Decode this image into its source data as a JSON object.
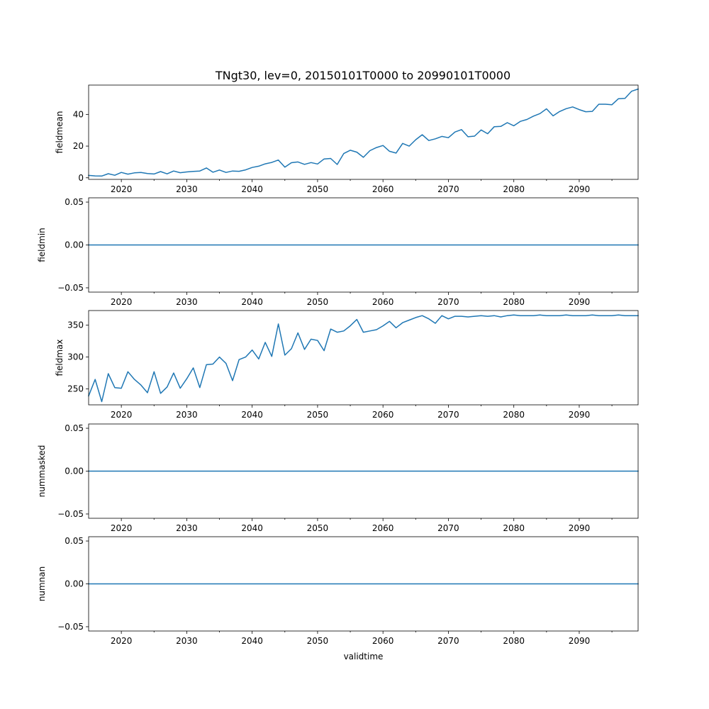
{
  "figure_title": "TNgt30, lev=0, 20150101T0000 to 20990101T0000",
  "xlabel": "validtime",
  "colors": {
    "series": "#1f77b4",
    "axes": "#000000",
    "background": "#ffffff"
  },
  "chart_data": [
    {
      "type": "line",
      "title": "TNgt30, lev=0, 20150101T0000 to 20990101T0000",
      "xlabel": "",
      "ylabel": "fieldmean",
      "x_start": 2015,
      "xlim": [
        2015,
        2099
      ],
      "ylim": [
        -1,
        58.5
      ],
      "xticks": [
        2020,
        2030,
        2040,
        2050,
        2060,
        2070,
        2080,
        2090
      ],
      "xtick_labels": [
        "2020",
        "2030",
        "2040",
        "2050",
        "2060",
        "2070",
        "2080",
        "2090"
      ],
      "yticks": [
        0,
        20,
        40
      ],
      "ytick_labels": [
        "0",
        "20",
        "40"
      ],
      "values": [
        1.5,
        1.2,
        1.1,
        2.6,
        1.6,
        3.4,
        2.3,
        3.1,
        3.4,
        2.7,
        2.4,
        3.9,
        2.5,
        4.3,
        3.2,
        3.7,
        4.0,
        4.3,
        6.2,
        3.5,
        4.9,
        3.4,
        4.3,
        4.1,
        5.0,
        6.5,
        7.3,
        8.8,
        9.7,
        11.2,
        6.7,
        9.5,
        10.0,
        8.5,
        9.6,
        8.7,
        11.9,
        12.2,
        8.4,
        15.3,
        17.4,
        16.2,
        12.9,
        17.1,
        19.1,
        20.4,
        16.7,
        15.6,
        21.7,
        20.0,
        24.0,
        27.2,
        23.5,
        24.6,
        26.1,
        25.3,
        28.9,
        30.4,
        25.9,
        26.3,
        30.2,
        27.8,
        32.2,
        32.4,
        34.8,
        32.8,
        35.6,
        36.8,
        38.9,
        40.5,
        43.5,
        39.1,
        41.8,
        43.6,
        44.7,
        43.0,
        41.7,
        41.9,
        46.4,
        46.4,
        46.1,
        49.9,
        50.1,
        54.6,
        56.0
      ]
    },
    {
      "type": "line",
      "title": "",
      "xlabel": "",
      "ylabel": "fieldmin",
      "x_start": 2015,
      "xlim": [
        2015,
        2099
      ],
      "ylim": [
        -0.055,
        0.055
      ],
      "xticks": [
        2020,
        2030,
        2040,
        2050,
        2060,
        2070,
        2080,
        2090
      ],
      "xtick_labels": [
        "2020",
        "2030",
        "2040",
        "2050",
        "2060",
        "2070",
        "2080",
        "2090"
      ],
      "yticks": [
        -0.05,
        0,
        0.05
      ],
      "ytick_labels": [
        "−0.05",
        "0.00",
        "0.05"
      ],
      "constant_value": 0
    },
    {
      "type": "line",
      "title": "",
      "xlabel": "",
      "ylabel": "fieldmax",
      "x_start": 2015,
      "xlim": [
        2015,
        2099
      ],
      "ylim": [
        225,
        373
      ],
      "xticks": [
        2020,
        2030,
        2040,
        2050,
        2060,
        2070,
        2080,
        2090
      ],
      "xtick_labels": [
        "2020",
        "2030",
        "2040",
        "2050",
        "2060",
        "2070",
        "2080",
        "2090"
      ],
      "yticks": [
        250,
        300,
        350
      ],
      "ytick_labels": [
        "250",
        "300",
        "350"
      ],
      "values": [
        239,
        265,
        230,
        274,
        252,
        251,
        277,
        265,
        256,
        244,
        277,
        243,
        253,
        275,
        251,
        266,
        283,
        252,
        288,
        289,
        300,
        290,
        263,
        296,
        300,
        311,
        297,
        323,
        301,
        352,
        303,
        313,
        338,
        312,
        328,
        326,
        310,
        344,
        339,
        341,
        349,
        359,
        339,
        341,
        343,
        349,
        356,
        346,
        354,
        358,
        362,
        365,
        360,
        353,
        365,
        360,
        364,
        364,
        363,
        364,
        365,
        364,
        365,
        363,
        365,
        366,
        365,
        365,
        365,
        366,
        365,
        365,
        365,
        366,
        365,
        365,
        365,
        366,
        365,
        365,
        365,
        366,
        365,
        365,
        365
      ]
    },
    {
      "type": "line",
      "title": "",
      "xlabel": "",
      "ylabel": "nummasked",
      "x_start": 2015,
      "xlim": [
        2015,
        2099
      ],
      "ylim": [
        -0.055,
        0.055
      ],
      "xticks": [
        2020,
        2030,
        2040,
        2050,
        2060,
        2070,
        2080,
        2090
      ],
      "xtick_labels": [
        "2020",
        "2030",
        "2040",
        "2050",
        "2060",
        "2070",
        "2080",
        "2090"
      ],
      "yticks": [
        -0.05,
        0,
        0.05
      ],
      "ytick_labels": [
        "−0.05",
        "0.00",
        "0.05"
      ],
      "constant_value": 0
    },
    {
      "type": "line",
      "title": "",
      "xlabel": "validtime",
      "ylabel": "numnan",
      "x_start": 2015,
      "xlim": [
        2015,
        2099
      ],
      "ylim": [
        -0.055,
        0.055
      ],
      "xticks": [
        2020,
        2030,
        2040,
        2050,
        2060,
        2070,
        2080,
        2090
      ],
      "xtick_labels": [
        "2020",
        "2030",
        "2040",
        "2050",
        "2060",
        "2070",
        "2080",
        "2090"
      ],
      "yticks": [
        -0.05,
        0,
        0.05
      ],
      "ytick_labels": [
        "−0.05",
        "0.00",
        "0.05"
      ],
      "constant_value": 0
    }
  ]
}
